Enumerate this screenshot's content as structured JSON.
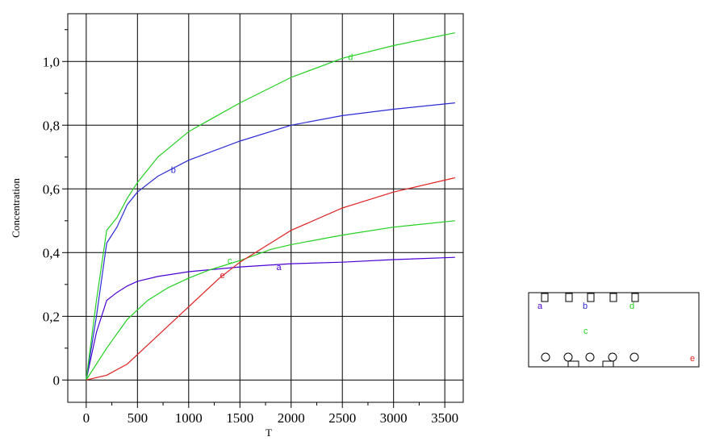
{
  "chart_data": {
    "type": "line",
    "xlabel": "T",
    "ylabel": "Concentration",
    "xlim": [
      -180,
      3680
    ],
    "ylim": [
      -0.07,
      1.15
    ],
    "x_ticks": [
      0,
      500,
      1000,
      1500,
      2000,
      2500,
      3000,
      3500
    ],
    "x_tick_labels": [
      "0",
      "500",
      "1000",
      "1500",
      "2000",
      "2500",
      "3000",
      "3500"
    ],
    "y_ticks": [
      0,
      0.2,
      0.4,
      0.6,
      0.8,
      1.0
    ],
    "y_tick_labels": [
      "0",
      "0,2",
      "0,4",
      "0,6",
      "0,8",
      "1,0"
    ],
    "grid": true,
    "legend_position": "right",
    "series": [
      {
        "name": "a",
        "color": "#4b00d6",
        "label_at": [
          1880,
          0.355
        ],
        "points": [
          [
            0,
            0
          ],
          [
            100,
            0.15
          ],
          [
            200,
            0.25
          ],
          [
            300,
            0.275
          ],
          [
            400,
            0.295
          ],
          [
            500,
            0.31
          ],
          [
            700,
            0.325
          ],
          [
            1000,
            0.34
          ],
          [
            1500,
            0.355
          ],
          [
            2000,
            0.365
          ],
          [
            2500,
            0.37
          ],
          [
            3000,
            0.378
          ],
          [
            3600,
            0.385
          ]
        ]
      },
      {
        "name": "b",
        "color": "#2b2bd6",
        "label_at": [
          850,
          0.66
        ],
        "points": [
          [
            0,
            0
          ],
          [
            100,
            0.2
          ],
          [
            200,
            0.43
          ],
          [
            300,
            0.48
          ],
          [
            400,
            0.55
          ],
          [
            500,
            0.59
          ],
          [
            700,
            0.64
          ],
          [
            1000,
            0.69
          ],
          [
            1500,
            0.75
          ],
          [
            2000,
            0.8
          ],
          [
            2500,
            0.83
          ],
          [
            3000,
            0.85
          ],
          [
            3600,
            0.87
          ]
        ]
      },
      {
        "name": "c",
        "color": "#22d022",
        "label_at": [
          1400,
          0.375
        ],
        "points": [
          [
            0,
            0
          ],
          [
            200,
            0.1
          ],
          [
            400,
            0.19
          ],
          [
            600,
            0.25
          ],
          [
            800,
            0.29
          ],
          [
            1000,
            0.32
          ],
          [
            1200,
            0.345
          ],
          [
            1500,
            0.375
          ],
          [
            1800,
            0.41
          ],
          [
            2000,
            0.425
          ],
          [
            2500,
            0.455
          ],
          [
            3000,
            0.48
          ],
          [
            3600,
            0.5
          ]
        ]
      },
      {
        "name": "d",
        "color": "#22d022",
        "label_at": [
          2580,
          1.015
        ],
        "points": [
          [
            0,
            0
          ],
          [
            100,
            0.25
          ],
          [
            200,
            0.47
          ],
          [
            300,
            0.51
          ],
          [
            400,
            0.57
          ],
          [
            500,
            0.62
          ],
          [
            700,
            0.7
          ],
          [
            1000,
            0.78
          ],
          [
            1500,
            0.87
          ],
          [
            2000,
            0.95
          ],
          [
            2500,
            1.01
          ],
          [
            3000,
            1.05
          ],
          [
            3600,
            1.09
          ]
        ]
      },
      {
        "name": "e",
        "color": "#dd2222",
        "label_at": [
          1330,
          0.33
        ],
        "points": [
          [
            0,
            0
          ],
          [
            200,
            0.015
          ],
          [
            400,
            0.05
          ],
          [
            600,
            0.11
          ],
          [
            800,
            0.17
          ],
          [
            1000,
            0.23
          ],
          [
            1300,
            0.32
          ],
          [
            1500,
            0.37
          ],
          [
            1800,
            0.43
          ],
          [
            2000,
            0.47
          ],
          [
            2500,
            0.54
          ],
          [
            3000,
            0.59
          ],
          [
            3600,
            0.635
          ]
        ]
      }
    ]
  },
  "legend": {
    "labels": [
      "a",
      "b",
      "d",
      "c",
      "e"
    ]
  }
}
